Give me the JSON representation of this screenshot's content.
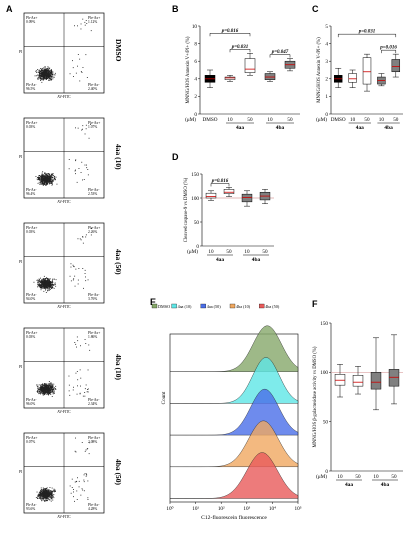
{
  "panel_letters": [
    "A",
    "B",
    "C",
    "D",
    "E",
    "F"
  ],
  "flow": {
    "quadrant_labels": {
      "ul": "Ph-Ax+",
      "ur": "Ph+Ax+",
      "ll": "Ph-Ax-",
      "lr": "Ph+Ax-"
    },
    "xaxis": "AV-FITC",
    "yaxis": "PI",
    "plots": [
      {
        "condition": "DMSO",
        "ul": "0.09%",
        "ur": "1.12%",
        "ll": "96.5%",
        "lr": "2.40%"
      },
      {
        "condition": "4aa (10)",
        "ul": "0.03%",
        "ur": "1.07%",
        "ll": "96.4%",
        "lr": "2.53%"
      },
      {
        "condition": "4aa (50)",
        "ul": "0.03%",
        "ur": "2.26%",
        "ll": "94.0%",
        "lr": "3.76%"
      },
      {
        "condition": "4ba (10)",
        "ul": "0.03%",
        "ur": "1.86%",
        "ll": "96.0%",
        "lr": "2.34%"
      },
      {
        "condition": "4ba (50)",
        "ul": "0.07%",
        "ur": "2.08%",
        "ll": "93.6%",
        "lr": "4.28%"
      }
    ]
  },
  "colors": {
    "dmso": "#000000",
    "white": "#ffffff",
    "grey": "#808080",
    "median": "#cc0000",
    "guide": "#d9a0a0"
  },
  "chart_data": [
    {
      "panel": "B",
      "type": "box",
      "ylabel": "MNNG/HOS Annexin V+/PI+ (%)",
      "ylim": [
        0,
        10
      ],
      "yticks": [
        0,
        2,
        4,
        6,
        8,
        10
      ],
      "categories": [
        "DMSO",
        "10",
        "50",
        "10",
        "50"
      ],
      "xunit": "(μM)",
      "groups": [
        {
          "name": "4aa",
          "span": [
            1,
            2
          ]
        },
        {
          "name": "4ba",
          "span": [
            3,
            4
          ]
        }
      ],
      "boxes": [
        {
          "label": "DMSO",
          "min": 3.0,
          "q1": 3.6,
          "median": 4.0,
          "q3": 4.4,
          "max": 5.0,
          "fill": "dmso"
        },
        {
          "label": "4aa 10",
          "min": 3.7,
          "q1": 3.9,
          "median": 4.1,
          "q3": 4.2,
          "max": 4.4,
          "fill": "white"
        },
        {
          "label": "4aa 50",
          "min": 4.4,
          "q1": 4.7,
          "median": 5.1,
          "q3": 6.3,
          "max": 6.9,
          "fill": "white"
        },
        {
          "label": "4ba 10",
          "min": 3.7,
          "q1": 3.9,
          "median": 4.2,
          "q3": 4.6,
          "max": 4.8,
          "fill": "grey"
        },
        {
          "label": "4ba 50",
          "min": 4.9,
          "q1": 5.2,
          "median": 5.6,
          "q3": 6.0,
          "max": 6.3,
          "fill": "grey"
        }
      ],
      "annotations": [
        {
          "text": "p=0.016",
          "from": 0,
          "to": 2
        },
        {
          "text": "p=0.031",
          "from": 1,
          "to": 2
        },
        {
          "text": "p=0.047",
          "from": 3,
          "to": 4
        }
      ]
    },
    {
      "panel": "C",
      "type": "box",
      "ylabel": "MNNG/HOS Annexin V-/PI+ (%)",
      "ylim": [
        0,
        5
      ],
      "yticks": [
        0,
        1,
        2,
        3,
        4,
        5
      ],
      "categories": [
        "DMSO",
        "10",
        "50",
        "10",
        "50"
      ],
      "xunit": "(μM)",
      "groups": [
        {
          "name": "4aa",
          "span": [
            1,
            2
          ]
        },
        {
          "name": "4ba",
          "span": [
            3,
            4
          ]
        }
      ],
      "boxes": [
        {
          "label": "DMSO",
          "min": 1.5,
          "q1": 1.8,
          "median": 2.0,
          "q3": 2.2,
          "max": 2.6,
          "fill": "dmso"
        },
        {
          "label": "4aa 10",
          "min": 1.5,
          "q1": 1.8,
          "median": 2.0,
          "q3": 2.3,
          "max": 2.5,
          "fill": "white"
        },
        {
          "label": "4aa 50",
          "min": 1.3,
          "q1": 1.7,
          "median": 2.4,
          "q3": 3.2,
          "max": 3.4,
          "fill": "white"
        },
        {
          "label": "4ba 10",
          "min": 1.6,
          "q1": 1.7,
          "median": 1.9,
          "q3": 2.1,
          "max": 2.3,
          "fill": "grey"
        },
        {
          "label": "4ba 50",
          "min": 2.1,
          "q1": 2.4,
          "median": 2.7,
          "q3": 3.1,
          "max": 3.4,
          "fill": "grey"
        }
      ],
      "annotations": [
        {
          "text": "p=0.031",
          "from": 0,
          "to": 4
        },
        {
          "text": "p=0.016",
          "from": 3,
          "to": 4
        }
      ]
    },
    {
      "panel": "D",
      "type": "box",
      "ylabel": "Cleaved caspase-9 vs DMSO (%)",
      "ylim": [
        0,
        150
      ],
      "yticks": [
        0,
        50,
        100,
        150
      ],
      "categories": [
        "10",
        "50",
        "10",
        "50"
      ],
      "xunit": "(μM)",
      "groups": [
        {
          "name": "4aa",
          "span": [
            0,
            1
          ]
        },
        {
          "name": "4ba",
          "span": [
            2,
            3
          ]
        }
      ],
      "reference": 100,
      "boxes": [
        {
          "label": "4aa 10",
          "min": 95,
          "q1": 100,
          "median": 103,
          "q3": 110,
          "max": 115,
          "fill": "white"
        },
        {
          "label": "4aa 50",
          "min": 103,
          "q1": 109,
          "median": 112,
          "q3": 118,
          "max": 122,
          "fill": "white"
        },
        {
          "label": "4ba 10",
          "min": 83,
          "q1": 92,
          "median": 101,
          "q3": 108,
          "max": 115,
          "fill": "grey"
        },
        {
          "label": "4ba 50",
          "min": 88,
          "q1": 96,
          "median": 104,
          "q3": 112,
          "max": 118,
          "fill": "grey"
        }
      ],
      "annotations": [
        {
          "text": "p=0.016",
          "from": 0,
          "to": 1
        }
      ]
    },
    {
      "panel": "E",
      "type": "area",
      "xlabel": "C12-fluorescein fluorescence",
      "ylabel": "Count",
      "xscale": "log",
      "xlim": [
        1,
        100000
      ],
      "xticks": [
        "10⁰",
        "10¹",
        "10²",
        "10³",
        "10⁴",
        "10⁵"
      ],
      "legend": [
        {
          "name": "DMSO",
          "color": "#86a86a"
        },
        {
          "name": "4aa (10)",
          "color": "#5ee6e6"
        },
        {
          "name": "4aa (50)",
          "color": "#4a6ee8"
        },
        {
          "name": "4ba (10)",
          "color": "#f0a860"
        },
        {
          "name": "4ba (50)",
          "color": "#e85a5a"
        }
      ],
      "series": [
        {
          "name": "DMSO",
          "peak_log10": 3.8,
          "width": 0.55,
          "color": "#86a86a"
        },
        {
          "name": "4aa (10)",
          "peak_log10": 3.75,
          "width": 0.52,
          "color": "#5ee6e6"
        },
        {
          "name": "4aa (50)",
          "peak_log10": 3.7,
          "width": 0.55,
          "color": "#4a6ee8"
        },
        {
          "name": "4ba (10)",
          "peak_log10": 3.65,
          "width": 0.58,
          "color": "#f0a860"
        },
        {
          "name": "4ba (50)",
          "peak_log10": 3.6,
          "width": 0.6,
          "color": "#e85a5a"
        }
      ]
    },
    {
      "panel": "F",
      "type": "box",
      "ylabel": "MNNG/HOS β-galactosidase activity vs DMSO (%)",
      "ylim": [
        0,
        150
      ],
      "yticks": [
        0,
        50,
        100,
        150
      ],
      "categories": [
        "10",
        "50",
        "10",
        "50"
      ],
      "xunit": "(μM)",
      "groups": [
        {
          "name": "4aa",
          "span": [
            0,
            1
          ]
        },
        {
          "name": "4ba",
          "span": [
            2,
            3
          ]
        }
      ],
      "reference": 100,
      "boxes": [
        {
          "label": "4aa 10",
          "min": 75,
          "q1": 87,
          "median": 92,
          "q3": 98,
          "max": 108,
          "fill": "white"
        },
        {
          "label": "4aa 50",
          "min": 78,
          "q1": 86,
          "median": 90,
          "q3": 97,
          "max": 106,
          "fill": "white"
        },
        {
          "label": "4ba 10",
          "min": 62,
          "q1": 83,
          "median": 90,
          "q3": 100,
          "max": 135,
          "fill": "grey"
        },
        {
          "label": "4ba 50",
          "min": 68,
          "q1": 86,
          "median": 95,
          "q3": 103,
          "max": 138,
          "fill": "grey"
        }
      ]
    }
  ]
}
